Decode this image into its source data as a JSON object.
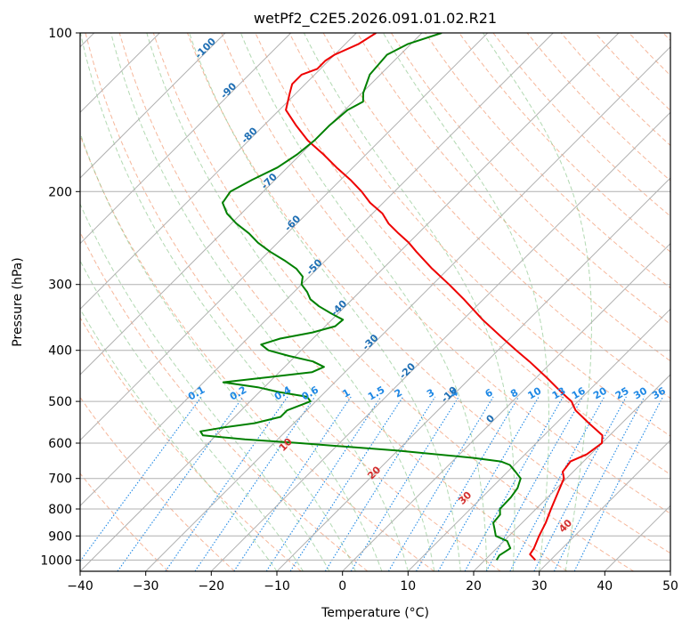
{
  "chart_data": {
    "type": "line",
    "title": "wetPf2_C2E5.2026.091.01.02.R21",
    "xlabel": "Temperature (°C)",
    "ylabel": "Pressure (hPa)",
    "xlim": [
      -40,
      50
    ],
    "ylim": [
      1050,
      100
    ],
    "y_scale": "log",
    "grid": true,
    "skew": true,
    "x_ticks": [
      "−40",
      "−30",
      "−20",
      "−10",
      "0",
      "10",
      "20",
      "30",
      "40",
      "50"
    ],
    "y_ticks": [
      "1000",
      "900",
      "800",
      "700",
      "600",
      "500",
      "400",
      "300",
      "200",
      "100"
    ],
    "colors": {
      "temperature": "#ee0000",
      "dewpoint": "#008000",
      "dry_adiabat": "#f4a582",
      "moist_adiabat": "#7fbf7f",
      "mixing_ratio": "#1e88e5",
      "isotherm_label": "#1f6fb4",
      "theta_label": "#d32f2f",
      "grid": "#b0b0b0"
    },
    "series": [
      {
        "key": "temperature",
        "p": [
          1000,
          975,
          950,
          900,
          850,
          800,
          750,
          700,
          680,
          650,
          630,
          600,
          580,
          550,
          520,
          500,
          480,
          450,
          420,
          400,
          380,
          350,
          320,
          300,
          280,
          260,
          250,
          240,
          230,
          220,
          210,
          200,
          190,
          180,
          170,
          160,
          150,
          140,
          130,
          125,
          120,
          117,
          113,
          110,
          105,
          100
        ],
        "t": [
          27.7,
          26.0,
          25.7,
          24.6,
          23.6,
          22.3,
          21.0,
          19.6,
          18.4,
          18.0,
          19.4,
          20.0,
          18.9,
          15.0,
          11.0,
          9.0,
          6.0,
          1.5,
          -3.5,
          -7.2,
          -11.0,
          -17.0,
          -23.0,
          -27.5,
          -32.5,
          -37.5,
          -40.0,
          -43.0,
          -46.0,
          -48.5,
          -52.0,
          -55.0,
          -58.5,
          -62.5,
          -66.5,
          -71.0,
          -75.0,
          -79.0,
          -81.0,
          -82.0,
          -82.0,
          -80.5,
          -80.5,
          -80.0,
          -78.0,
          -77.0
        ]
      },
      {
        "key": "dewpoint",
        "p": [
          1000,
          980,
          950,
          920,
          900,
          870,
          850,
          820,
          800,
          760,
          730,
          700,
          680,
          660,
          650,
          640,
          620,
          600,
          590,
          580,
          570,
          560,
          550,
          535,
          520,
          500,
          490,
          480,
          470,
          460,
          450,
          440,
          430,
          420,
          410,
          400,
          390,
          380,
          370,
          360,
          350,
          340,
          330,
          320,
          310,
          300,
          290,
          280,
          270,
          260,
          250,
          240,
          230,
          220,
          210,
          200,
          190,
          180,
          170,
          160,
          150,
          140,
          135,
          130,
          120,
          110,
          105,
          100
        ],
        "t": [
          21.8,
          21.5,
          22.1,
          20.5,
          18.0,
          16.6,
          15.6,
          15.4,
          14.5,
          14.4,
          14.0,
          13.0,
          11.2,
          9.3,
          7.4,
          2.7,
          -10.0,
          -26.0,
          -35.0,
          -42.0,
          -43.0,
          -40.0,
          -36.0,
          -33.0,
          -33.0,
          -30.8,
          -32.0,
          -37.0,
          -41.0,
          -47.0,
          -41.0,
          -35.0,
          -34.0,
          -36.5,
          -41.0,
          -45.0,
          -47.0,
          -45.0,
          -41.0,
          -38.5,
          -38.3,
          -41.2,
          -44.0,
          -46.4,
          -48.0,
          -50.0,
          -51.0,
          -53.2,
          -56.3,
          -59.8,
          -63.0,
          -65.8,
          -69.2,
          -72.2,
          -74.5,
          -75.0,
          -73.5,
          -71.5,
          -70.5,
          -70.0,
          -70.0,
          -69.6,
          -68.5,
          -69.8,
          -71.6,
          -72.0,
          -70.5,
          -67.0
        ]
      }
    ],
    "isotherm_labels": [
      {
        "t": -100,
        "text": "-100",
        "p": 108
      },
      {
        "t": -90,
        "text": "-90",
        "p": 130
      },
      {
        "t": -80,
        "text": "-80",
        "p": 158
      },
      {
        "t": -70,
        "text": "-70",
        "p": 193
      },
      {
        "t": -60,
        "text": "-60",
        "p": 232
      },
      {
        "t": -50,
        "text": "-50",
        "p": 281
      },
      {
        "t": -40,
        "text": "-40",
        "p": 336
      },
      {
        "t": -30,
        "text": "-30",
        "p": 390
      },
      {
        "t": -20,
        "text": "-20",
        "p": 442
      },
      {
        "t": -10,
        "text": "-10",
        "p": 490
      },
      {
        "t": 0,
        "text": "0",
        "p": 545
      }
    ],
    "mixing_ratio_labels": [
      "0.1",
      "0.2",
      "0.4",
      "0.6",
      "1",
      "1.5",
      "2",
      "3",
      "4",
      "6",
      "8",
      "10",
      "13",
      "16",
      "20",
      "25",
      "30",
      "36"
    ],
    "mixing_ratio_values": [
      0.1,
      0.2,
      0.4,
      0.6,
      1,
      1.5,
      2,
      3,
      4,
      6,
      8,
      10,
      13,
      16,
      20,
      25,
      30,
      36
    ],
    "theta_labels": [
      {
        "text": "10",
        "theta": 10,
        "p": 610
      },
      {
        "text": "20",
        "theta": 20,
        "p": 690
      },
      {
        "text": "30",
        "theta": 30,
        "p": 770
      },
      {
        "text": "40",
        "theta": 40,
        "p": 870
      }
    ]
  }
}
